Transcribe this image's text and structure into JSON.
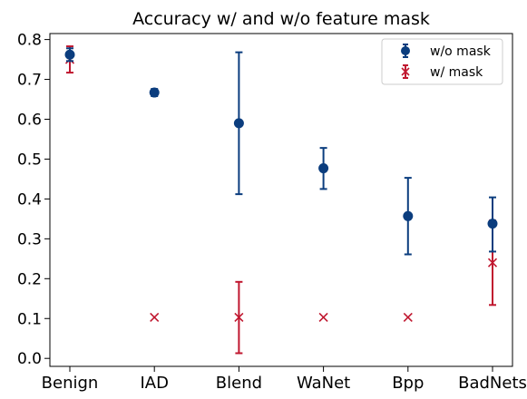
{
  "chart_data": {
    "type": "scatter",
    "title": "Accuracy w/ and w/o feature mask",
    "xlabel": "",
    "ylabel": "",
    "categories": [
      "Benign",
      "IAD",
      "Blend",
      "WaNet",
      "Bpp",
      "BadNets"
    ],
    "ylim": [
      -0.02,
      0.815
    ],
    "yticks": [
      "0.0",
      "0.1",
      "0.2",
      "0.3",
      "0.4",
      "0.5",
      "0.6",
      "0.7",
      "0.8"
    ],
    "grid": false,
    "legend_position": "top-right",
    "series": [
      {
        "name": "w/o mask",
        "marker": "circle",
        "color": "#0b3d7e",
        "values": [
          0.762,
          0.667,
          0.59,
          0.477,
          0.357,
          0.338
        ],
        "error_low": [
          0.746,
          0.658,
          0.412,
          0.425,
          0.261,
          0.268
        ],
        "error_high": [
          0.778,
          0.676,
          0.768,
          0.528,
          0.453,
          0.404
        ]
      },
      {
        "name": "w/ mask",
        "marker": "x",
        "color": "#c0172f",
        "values": [
          0.75,
          0.103,
          0.103,
          0.103,
          0.103,
          0.24
        ],
        "error_low": [
          0.717,
          0.103,
          0.013,
          0.103,
          0.103,
          0.134
        ],
        "error_high": [
          0.783,
          0.103,
          0.192,
          0.103,
          0.103,
          0.346
        ]
      }
    ]
  }
}
